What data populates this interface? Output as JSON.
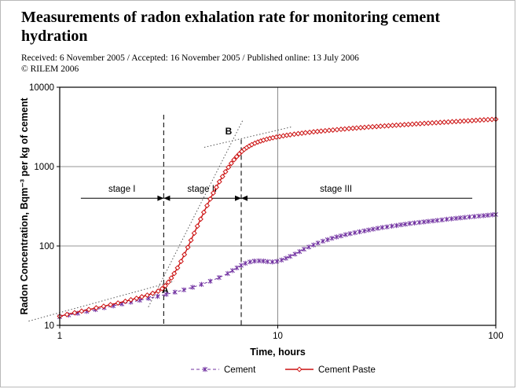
{
  "header": {
    "title": "Measurements of radon exhalation rate for monitoring cement hydration",
    "received_line": "Received: 6 November 2005 / Accepted: 16 November 2005 / Published online: 13 July 2006",
    "copyright": "© RILEM 2006"
  },
  "chart_data": {
    "type": "scatter",
    "x_axis": {
      "label": "Time, hours",
      "scale": "log",
      "min": 1,
      "max": 100,
      "ticks": [
        1,
        10,
        100
      ]
    },
    "y_axis": {
      "label": "Radon Concentration, Bqm⁻³ per kg of cement",
      "scale": "log",
      "min": 10,
      "max": 10000,
      "ticks": [
        10,
        100,
        1000,
        10000
      ]
    },
    "grid": "major-on",
    "legend_position": "bottom-center",
    "series": [
      {
        "name": "Cement",
        "color": "#7030A0",
        "marker": "asterisk",
        "line": "dashed",
        "points": [
          [
            1.0,
            12.8
          ],
          [
            1.1,
            13.5
          ],
          [
            1.21,
            14.2
          ],
          [
            1.33,
            15.0
          ],
          [
            1.46,
            15.8
          ],
          [
            1.6,
            16.7
          ],
          [
            1.76,
            17.6
          ],
          [
            1.93,
            18.6
          ],
          [
            2.12,
            19.6
          ],
          [
            2.33,
            20.7
          ],
          [
            2.56,
            21.9
          ],
          [
            2.81,
            23.2
          ],
          [
            3.08,
            24.6
          ],
          [
            3.38,
            26.2
          ],
          [
            3.71,
            28.0
          ],
          [
            4.07,
            30.2
          ],
          [
            4.47,
            32.8
          ],
          [
            4.9,
            36.0
          ],
          [
            5.38,
            40.0
          ],
          [
            5.9,
            45.0
          ],
          [
            6.2,
            49.0
          ],
          [
            6.5,
            53.0
          ],
          [
            6.8,
            57.0
          ],
          [
            7.1,
            60.5
          ],
          [
            7.45,
            63.0
          ],
          [
            7.8,
            64.5
          ],
          [
            8.2,
            65.0
          ],
          [
            8.6,
            64.5
          ],
          [
            9.0,
            63.5
          ],
          [
            9.45,
            63.0
          ],
          [
            9.9,
            64.0
          ],
          [
            10.4,
            66.5
          ],
          [
            10.9,
            70.0
          ],
          [
            11.4,
            74.0
          ],
          [
            12.0,
            79.0
          ],
          [
            12.6,
            85.0
          ],
          [
            13.2,
            91.0
          ],
          [
            13.9,
            97.0
          ],
          [
            14.6,
            103.0
          ],
          [
            15.3,
            109.0
          ],
          [
            16.1,
            115.0
          ],
          [
            16.9,
            120.0
          ],
          [
            17.7,
            125.0
          ],
          [
            18.6,
            130.0
          ],
          [
            19.5,
            134.0
          ],
          [
            20.5,
            139.0
          ],
          [
            21.5,
            143.0
          ],
          [
            22.6,
            147.0
          ],
          [
            23.7,
            151.0
          ],
          [
            24.9,
            155.0
          ],
          [
            26.1,
            159.0
          ],
          [
            27.4,
            163.0
          ],
          [
            28.8,
            167.0
          ],
          [
            30.2,
            171.0
          ],
          [
            31.7,
            174.0
          ],
          [
            33.3,
            178.0
          ],
          [
            35.0,
            181.0
          ],
          [
            36.7,
            185.0
          ],
          [
            38.5,
            188.0
          ],
          [
            40.4,
            192.0
          ],
          [
            42.4,
            195.0
          ],
          [
            44.5,
            198.0
          ],
          [
            46.7,
            201.0
          ],
          [
            49.0,
            204.0
          ],
          [
            51.5,
            207.0
          ],
          [
            54.0,
            210.0
          ],
          [
            56.7,
            213.0
          ],
          [
            59.5,
            217.0
          ],
          [
            62.5,
            220.0
          ],
          [
            65.6,
            223.0
          ],
          [
            68.8,
            226.0
          ],
          [
            72.2,
            229.0
          ],
          [
            75.8,
            232.0
          ],
          [
            79.6,
            235.0
          ],
          [
            83.5,
            238.0
          ],
          [
            87.7,
            241.0
          ],
          [
            92.0,
            244.0
          ],
          [
            96.6,
            247.0
          ],
          [
            100.0,
            249.0
          ]
        ]
      },
      {
        "name": "Cement Paste",
        "color": "#CC1111",
        "marker": "diamond",
        "line": "solid",
        "points": [
          [
            1.0,
            13
          ],
          [
            1.08,
            13.7
          ],
          [
            1.17,
            14.4
          ],
          [
            1.26,
            15.1
          ],
          [
            1.36,
            15.8
          ],
          [
            1.47,
            16.6
          ],
          [
            1.59,
            17.4
          ],
          [
            1.71,
            18.2
          ],
          [
            1.85,
            19.1
          ],
          [
            2.0,
            20.1
          ],
          [
            2.12,
            21
          ],
          [
            2.25,
            21.9
          ],
          [
            2.38,
            22.9
          ],
          [
            2.52,
            24
          ],
          [
            2.67,
            25.3
          ],
          [
            2.83,
            27
          ],
          [
            2.95,
            29
          ],
          [
            3.05,
            31.5
          ],
          [
            3.15,
            35
          ],
          [
            3.25,
            39.5
          ],
          [
            3.35,
            45
          ],
          [
            3.47,
            53
          ],
          [
            3.6,
            64
          ],
          [
            3.73,
            78
          ],
          [
            3.87,
            96
          ],
          [
            4.0,
            118
          ],
          [
            4.14,
            145
          ],
          [
            4.28,
            178
          ],
          [
            4.43,
            218
          ],
          [
            4.58,
            266
          ],
          [
            4.74,
            323
          ],
          [
            4.9,
            390
          ],
          [
            5.06,
            465
          ],
          [
            5.23,
            550
          ],
          [
            5.4,
            645
          ],
          [
            5.58,
            750
          ],
          [
            5.76,
            862
          ],
          [
            5.94,
            980
          ],
          [
            6.12,
            1100
          ],
          [
            6.3,
            1220
          ],
          [
            6.48,
            1335
          ],
          [
            6.66,
            1445
          ],
          [
            6.84,
            1550
          ],
          [
            7.02,
            1645
          ],
          [
            7.2,
            1730
          ],
          [
            7.4,
            1815
          ],
          [
            7.6,
            1890
          ],
          [
            7.85,
            1970
          ],
          [
            8.1,
            2040
          ],
          [
            8.35,
            2100
          ],
          [
            8.6,
            2155
          ],
          [
            8.9,
            2215
          ],
          [
            9.2,
            2265
          ],
          [
            9.5,
            2310
          ],
          [
            9.85,
            2355
          ],
          [
            10.2,
            2395
          ],
          [
            10.6,
            2440
          ],
          [
            11.0,
            2480
          ],
          [
            11.4,
            2520
          ],
          [
            11.9,
            2560
          ],
          [
            12.4,
            2600
          ],
          [
            12.9,
            2635
          ],
          [
            13.4,
            2670
          ],
          [
            14.0,
            2705
          ],
          [
            14.6,
            2740
          ],
          [
            15.2,
            2770
          ],
          [
            15.8,
            2800
          ],
          [
            16.5,
            2830
          ],
          [
            17.2,
            2860
          ],
          [
            17.9,
            2890
          ],
          [
            18.7,
            2920
          ],
          [
            19.5,
            2950
          ],
          [
            20.3,
            2980
          ],
          [
            21.2,
            3010
          ],
          [
            22.1,
            3040
          ],
          [
            23.0,
            3065
          ],
          [
            24.0,
            3095
          ],
          [
            25.0,
            3120
          ],
          [
            26.1,
            3150
          ],
          [
            27.2,
            3175
          ],
          [
            28.4,
            3200
          ],
          [
            29.6,
            3225
          ],
          [
            30.9,
            3250
          ],
          [
            32.2,
            3275
          ],
          [
            33.6,
            3300
          ],
          [
            35.0,
            3325
          ],
          [
            36.5,
            3350
          ],
          [
            38.1,
            3375
          ],
          [
            39.7,
            3400
          ],
          [
            41.4,
            3425
          ],
          [
            43.2,
            3450
          ],
          [
            45.0,
            3475
          ],
          [
            47.0,
            3500
          ],
          [
            49.0,
            3525
          ],
          [
            51.1,
            3550
          ],
          [
            53.3,
            3575
          ],
          [
            55.6,
            3600
          ],
          [
            58.0,
            3625
          ],
          [
            60.5,
            3650
          ],
          [
            63.1,
            3675
          ],
          [
            65.8,
            3700
          ],
          [
            68.6,
            3725
          ],
          [
            71.5,
            3750
          ],
          [
            74.6,
            3775
          ],
          [
            77.8,
            3800
          ],
          [
            81.1,
            3825
          ],
          [
            84.6,
            3855
          ],
          [
            88.2,
            3880
          ],
          [
            92.0,
            3905
          ],
          [
            96.0,
            3930
          ],
          [
            100.0,
            3955
          ]
        ]
      }
    ],
    "annotations": {
      "stage_line_y": 400,
      "stages": [
        {
          "label": "stage I",
          "from": 1.25,
          "to": 3.0,
          "label_at": 1.93,
          "arrows": "right"
        },
        {
          "label": "stage II",
          "from": 3.0,
          "to": 6.8,
          "label_at": 4.5,
          "arrows": "both"
        },
        {
          "label": "stage III",
          "from": 6.8,
          "to": 78.0,
          "label_at": 18.5,
          "arrows": "left"
        }
      ],
      "dividers": [
        {
          "x": 3.0,
          "top": 4500
        },
        {
          "x": 6.8,
          "top": 2200
        }
      ],
      "points": [
        {
          "label": "A",
          "x": 3.05,
          "y": 25.5
        },
        {
          "label": "B",
          "x": 5.95,
          "y": 2550
        }
      ],
      "tangents": [
        [
          [
            0.72,
            11.3
          ],
          [
            3.35,
            36
          ]
        ],
        [
          [
            2.55,
            17
          ],
          [
            6.9,
            3800
          ]
        ],
        [
          [
            4.6,
            1750
          ],
          [
            11.5,
            3150
          ]
        ]
      ]
    }
  }
}
